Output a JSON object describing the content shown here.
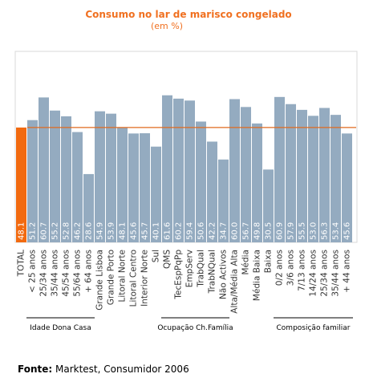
{
  "chart_data": {
    "type": "bar",
    "title": "Consumo no lar de marisco congelado",
    "subtitle": "(em %)",
    "categories": [
      "TOTAL",
      "< 25 anos",
      "25/34 anos",
      "35/44 anos",
      "45/54 anos",
      "55/64 anos",
      "+ 64 anos",
      "Grande Lisboa",
      "Grande Porto",
      "Litoral Norte",
      "Litoral Centro",
      "Interior Norte",
      "Sul",
      "QMS",
      "TecEspPqPp",
      "EmpServ",
      "TrabQual",
      "TrabNQual",
      "Não Activos",
      "Alta/Média Alta",
      "Média",
      "Média Baixa",
      "Baixa",
      "0/2 anos",
      "3/6 anos",
      "7/13 anos",
      "14/24 anos",
      "25/34 anos",
      "35/44 anos",
      "+ 44 anos"
    ],
    "values": [
      48.1,
      51.2,
      60.7,
      55.2,
      52.8,
      46.2,
      28.6,
      54.9,
      53.9,
      48.1,
      45.6,
      45.7,
      40.1,
      61.6,
      60.2,
      59.4,
      50.6,
      42.2,
      34.7,
      60.0,
      56.7,
      49.8,
      30.5,
      60.9,
      57.9,
      55.5,
      53.0,
      56.3,
      53.4,
      45.6
    ],
    "value_labels": [
      "48.1",
      "51.2",
      "60.7",
      "55.2",
      "52.8",
      "46.2",
      "28.6",
      "54.9",
      "53.9",
      "48.1",
      "45.6",
      "45.7",
      "40.1",
      "61.6",
      "60.2",
      "59.4",
      "50.6",
      "42.2",
      "34.7",
      "60.0",
      "56.7",
      "49.8",
      "30.5",
      "60.9",
      "57.9",
      "55.5",
      "53.0",
      "56.3",
      "53.4",
      "45.6"
    ],
    "reference_value": 48.1,
    "ylim": [
      0,
      80
    ],
    "groups": [
      {
        "label": "Idade Dona Casa",
        "start": 1,
        "end": 6
      },
      {
        "label": "Ocupação Ch.Família",
        "start": 13,
        "end": 18
      },
      {
        "label": "Composição familiar",
        "start": 23,
        "end": 29
      }
    ],
    "colors": {
      "total": "#f26a10",
      "bar": "#94abc0",
      "reference_line": "#e06a1e",
      "plot_border": "#d8d8d8"
    },
    "grid": false
  },
  "source": {
    "label": "Fonte:",
    "text": " Marktest, Consumidor 2006"
  }
}
